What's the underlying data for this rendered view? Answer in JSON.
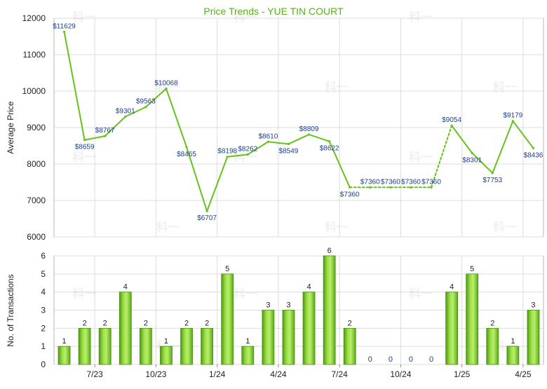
{
  "chart_data": [
    {
      "type": "line",
      "title": "Price Trends - YUE TIN COURT",
      "ylabel": "Average Price",
      "ylim": [
        6000,
        12000
      ],
      "yticks": [
        6000,
        7000,
        8000,
        9000,
        10000,
        11000,
        12000
      ],
      "grid": true,
      "watermark": "科一",
      "series": [
        {
          "values": [
            11629,
            8659,
            8767,
            9301,
            9563,
            10068,
            8465,
            6707,
            8198,
            8262,
            8610,
            8549,
            8809,
            8622,
            7360,
            7360,
            7360,
            7360,
            7360,
            9054,
            8301,
            7753,
            9179,
            8436
          ],
          "labels": [
            "$11629",
            "$8659",
            "$8767",
            "$9301",
            "$9563",
            "$10068",
            "$8465",
            "$6707",
            "$8198",
            "$8262",
            "$8610",
            "$8549",
            "$8809",
            "$8622",
            "$7360",
            "$7360",
            "$7360",
            "$7360",
            "$7360",
            "$9054",
            "$8301",
            "$7753",
            "$9179",
            "$8436"
          ],
          "color": "#66c21a"
        }
      ]
    },
    {
      "type": "bar",
      "ylabel": "No. of Transactions",
      "ylim": [
        0,
        6
      ],
      "yticks": [
        0,
        1,
        2,
        3,
        4,
        5,
        6
      ],
      "grid": true,
      "xticks": [
        "7/23",
        "10/23",
        "1/24",
        "4/24",
        "7/24",
        "10/24",
        "1/25",
        "4/25"
      ],
      "values": [
        1,
        2,
        2,
        4,
        2,
        1,
        2,
        2,
        5,
        1,
        3,
        3,
        4,
        6,
        2,
        0,
        0,
        0,
        0,
        4,
        5,
        2,
        1,
        3
      ],
      "color": "#6cc21e"
    }
  ]
}
